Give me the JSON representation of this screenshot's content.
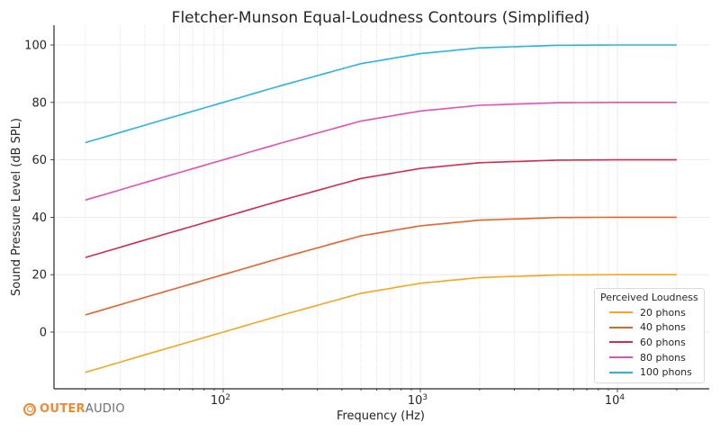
{
  "chart_data": {
    "type": "line",
    "title": "Fletcher-Munson Equal-Loudness Contours (Simplified)",
    "xlabel": "Frequency (Hz)",
    "ylabel": "Sound Pressure Level (dB SPL)",
    "xscale": "log",
    "xlim": [
      12,
      30000
    ],
    "ylim": [
      -19,
      106
    ],
    "x_ticks": [
      {
        "value": 100,
        "label": "10",
        "exp": "2"
      },
      {
        "value": 1000,
        "label": "10",
        "exp": "3"
      },
      {
        "value": 10000,
        "label": "10",
        "exp": "4"
      }
    ],
    "y_ticks": [
      0,
      20,
      40,
      60,
      80,
      100
    ],
    "grid": true,
    "legend": {
      "title": "Perceived Loudness",
      "position": "lower right"
    },
    "x": [
      20,
      50,
      100,
      200,
      500,
      1000,
      2000,
      5000,
      10000,
      20000
    ],
    "series": [
      {
        "name": "20 phons",
        "color": "#f5a623",
        "values": [
          -14,
          -6,
          0,
          6,
          13.5,
          17,
          19,
          19.9,
          20,
          20
        ]
      },
      {
        "name": "40 phons",
        "color": "#e8622c",
        "values": [
          6,
          14,
          20,
          26,
          33.5,
          37,
          39,
          39.9,
          40,
          40
        ]
      },
      {
        "name": "60 phons",
        "color": "#d62b4f",
        "values": [
          26,
          34,
          40,
          46,
          53.5,
          57,
          59,
          59.9,
          60,
          60
        ]
      },
      {
        "name": "80 phons",
        "color": "#e650b4",
        "values": [
          46,
          54,
          60,
          66,
          73.5,
          77,
          79,
          79.9,
          80,
          80
        ]
      },
      {
        "name": "100 phons",
        "color": "#27b4e6",
        "values": [
          66,
          74,
          80,
          86,
          93.5,
          97,
          99,
          99.9,
          100,
          100
        ]
      }
    ]
  },
  "branding": {
    "logo_part1": "OUTER",
    "logo_part2": "AUDIO"
  }
}
